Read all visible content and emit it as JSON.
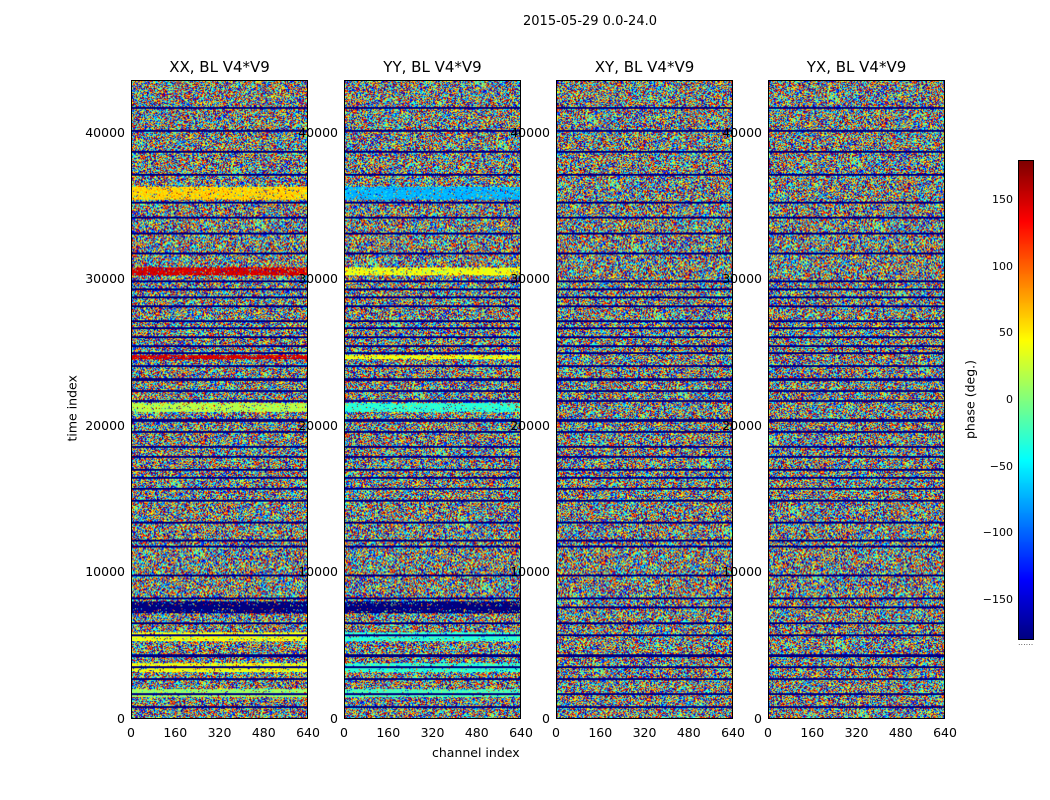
{
  "suptitle": "2015-05-29 0.0-24.0",
  "chart_data": {
    "type": "heatmap",
    "panels": [
      {
        "title": "XX, BL V4*V9",
        "polarization": "XX"
      },
      {
        "title": "YY, BL V4*V9",
        "polarization": "YY"
      },
      {
        "title": "XY, BL V4*V9",
        "polarization": "XY"
      },
      {
        "title": "YX, BL V4*V9",
        "polarization": "YX"
      }
    ],
    "xlabel": "channel index",
    "ylabel": "time index",
    "xlim": [
      0,
      640
    ],
    "ylim": [
      0,
      43600
    ],
    "xticks": [
      0,
      160,
      320,
      480,
      640
    ],
    "yticks": [
      0,
      10000,
      20000,
      30000,
      40000
    ],
    "colorbar": {
      "label": "phase (deg.)",
      "range": [
        -180,
        180
      ],
      "ticks": [
        150,
        100,
        50,
        0,
        -50,
        -100,
        -150
      ],
      "colormap": "jet",
      "underflow_label": "......"
    },
    "phase_bands": [
      {
        "time_range": [
          35500,
          36400
        ],
        "XX_phase": 60,
        "YY_phase": -70
      },
      {
        "time_range": [
          30300,
          30900
        ],
        "XX_phase": 150,
        "YY_phase": 40
      },
      {
        "time_range": [
          24600,
          24900
        ],
        "XX_phase": 150,
        "YY_phase": 40
      },
      {
        "time_range": [
          21000,
          21600
        ],
        "XX_phase": 20,
        "YY_phase": -30
      },
      {
        "time_range": [
          7200,
          8000
        ],
        "XX_phase": -180,
        "YY_phase": -180
      },
      {
        "time_range": [
          5300,
          5900
        ],
        "XX_phase": 40,
        "YY_phase": -30
      },
      {
        "time_range": [
          3200,
          3800
        ],
        "XX_phase": 40,
        "YY_phase": -30
      },
      {
        "time_range": [
          1500,
          2000
        ],
        "XX_phase": 10,
        "YY_phase": -20
      }
    ],
    "data_gaps_time": [
      800,
      1700,
      2700,
      3500,
      4300,
      5700,
      6500,
      7600,
      8200,
      9800,
      11800,
      12200,
      13400,
      14900,
      15700,
      16500,
      17000,
      17900,
      18600,
      19600,
      20400,
      21700,
      22400,
      23200,
      24100,
      25000,
      25500,
      26100,
      26700,
      27200,
      28200,
      28800,
      29400,
      29900,
      31800,
      33200,
      34300,
      35300,
      37200,
      38800,
      40200,
      41800
    ]
  }
}
